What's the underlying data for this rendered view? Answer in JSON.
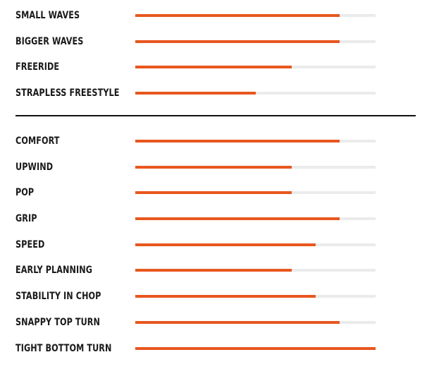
{
  "colors": {
    "accent": "#E8571F",
    "track": "#EBEBEB",
    "text": "#1A1A1A",
    "divider": "#111111"
  },
  "sections": [
    {
      "name": "riding-style",
      "ratings": [
        {
          "label": "SMALL WAVES",
          "level": 0.85
        },
        {
          "label": "BIGGER WAVES",
          "level": 0.85
        },
        {
          "label": "FREERIDE",
          "level": 0.65
        },
        {
          "label": "STRAPLESS FREESTYLE",
          "level": 0.5
        }
      ]
    },
    {
      "name": "performance",
      "ratings": [
        {
          "label": "COMFORT",
          "level": 0.85
        },
        {
          "label": "UPWIND",
          "level": 0.65
        },
        {
          "label": "POP",
          "level": 0.65
        },
        {
          "label": "GRIP",
          "level": 0.85
        },
        {
          "label": "SPEED",
          "level": 0.75
        },
        {
          "label": "EARLY PLANNING",
          "level": 0.65
        },
        {
          "label": "STABILITY IN CHOP",
          "level": 0.75
        },
        {
          "label": "SNAPPY TOP TURN",
          "level": 0.85
        },
        {
          "label": "TIGHT BOTTOM TURN",
          "level": 1.0
        }
      ]
    }
  ]
}
